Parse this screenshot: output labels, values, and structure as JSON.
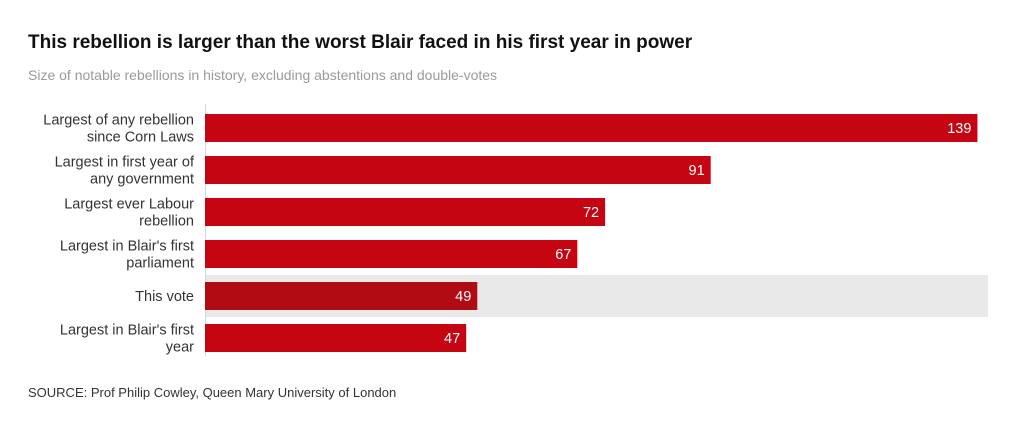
{
  "chart_data": {
    "type": "bar",
    "orientation": "horizontal",
    "title": "This rebellion is larger than the worst Blair faced in his first year in power",
    "subtitle": "Size of notable rebellions in history, excluding abstentions and double-votes",
    "categories": [
      [
        "Largest of any rebellion",
        "since Corn Laws"
      ],
      [
        "Largest in first year of",
        "any government"
      ],
      [
        "Largest ever Labour",
        "rebellion"
      ],
      [
        "Largest in Blair's first",
        "parliament"
      ],
      [
        "This vote"
      ],
      [
        "Largest in Blair's first",
        "year"
      ]
    ],
    "values": [
      139,
      91,
      72,
      67,
      49,
      47
    ],
    "highlight_index": 4,
    "xlim": [
      0,
      140
    ],
    "colors": {
      "bar": "#c50612",
      "highlight_bar": "#b10c14",
      "highlight_band": "#e9e9e9",
      "axis": "#d6d6d6"
    },
    "source": "SOURCE: Prof Philip Cowley, Queen Mary University of London"
  }
}
